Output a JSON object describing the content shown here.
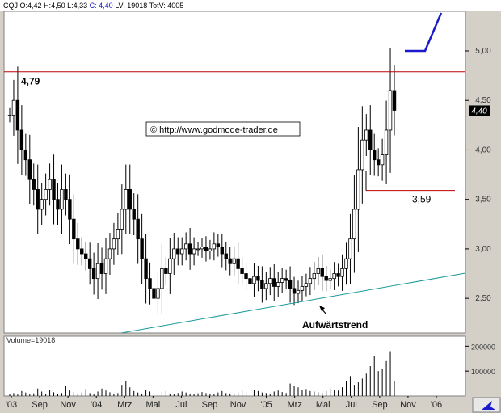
{
  "header": {
    "symbol": "CQJ",
    "open": "O:4,42",
    "high": "H:4,50",
    "low": "L:4,33",
    "close": "C: 4,40",
    "lv": "LV: 19018",
    "totv": "TotV: 4005"
  },
  "colors": {
    "background": "#ffffff",
    "frame": "#d4d0c8",
    "candles": "#000000",
    "resistance_line": "#c00000",
    "trend_line": "#1a9a9a",
    "projection": "#1a1acc",
    "volume": "#000000"
  },
  "icons": {
    "corner_button": "cursor-arrow-icon",
    "annotation_arrow": "arrow-icon"
  },
  "chart_data": {
    "type": "candlestick",
    "grid": false,
    "yaxis_position": "right",
    "ylim": [
      2.15,
      5.4
    ],
    "y_ticks": [
      "5,00",
      "4,50",
      "4,00",
      "3,50",
      "3,00",
      "2,50"
    ],
    "last_price_label": "4,40",
    "x_ticks": [
      "'03",
      "Sep",
      "Nov",
      "'04",
      "Mrz",
      "Mai",
      "Jul",
      "Sep",
      "Nov",
      "'05",
      "Mrz",
      "Mai",
      "Jul",
      "Sep",
      "Nov",
      "'06"
    ],
    "watermark": "© http://www.godmode-trader.de",
    "annotations": {
      "resistance_label": "4,79",
      "resistance_value": 4.79,
      "support_label": "3,59",
      "support_value": 3.59,
      "trend_label": "Aufwärtstrend"
    },
    "weekly_close": [
      4.35,
      4.5,
      4.2,
      4.0,
      3.9,
      3.7,
      3.6,
      3.4,
      3.5,
      3.6,
      3.7,
      3.5,
      3.4,
      3.6,
      3.5,
      3.3,
      3.1,
      3.0,
      2.95,
      2.9,
      2.8,
      2.7,
      2.85,
      2.75,
      2.9,
      3.0,
      3.1,
      3.2,
      3.4,
      3.6,
      3.4,
      3.3,
      3.1,
      2.9,
      2.7,
      2.6,
      2.5,
      2.6,
      2.8,
      2.75,
      2.9,
      3.0,
      2.95,
      3.0,
      3.05,
      2.95,
      3.0,
      3.0,
      3.02,
      2.98,
      3.0,
      3.05,
      3.02,
      2.95,
      2.9,
      2.85,
      2.9,
      2.8,
      2.75,
      2.7,
      2.65,
      2.72,
      2.68,
      2.6,
      2.65,
      2.7,
      2.62,
      2.66,
      2.7,
      2.68,
      2.6,
      2.55,
      2.58,
      2.62,
      2.65,
      2.7,
      2.75,
      2.8,
      2.72,
      2.68,
      2.7,
      2.75,
      2.72,
      2.8,
      2.9,
      3.1,
      3.4,
      3.8,
      4.1,
      4.2,
      4.0,
      3.9,
      3.85,
      3.95,
      4.2,
      4.6,
      4.4
    ],
    "volume_ylim": [
      0,
      240000
    ],
    "volume_ticks": [
      "200000",
      "100000"
    ],
    "volume_label": "Volume=19018",
    "weekly_volume": [
      8,
      12,
      6,
      20,
      14,
      9,
      11,
      30,
      18,
      10,
      25,
      15,
      8,
      12,
      40,
      22,
      16,
      10,
      14,
      28,
      12,
      9,
      18,
      30,
      22,
      15,
      10,
      12,
      45,
      60,
      35,
      20,
      14,
      10,
      25,
      18,
      12,
      9,
      15,
      20,
      10,
      8,
      12,
      18,
      14,
      10,
      9,
      11,
      16,
      12,
      10,
      8,
      14,
      20,
      12,
      10,
      9,
      15,
      22,
      18,
      30,
      25,
      20,
      14,
      12,
      10,
      18,
      22,
      16,
      12,
      50,
      40,
      35,
      25,
      28,
      20,
      18,
      15,
      12,
      20,
      30,
      25,
      22,
      35,
      60,
      80,
      45,
      55,
      70,
      90,
      120,
      160,
      100,
      110,
      140,
      180,
      60
    ]
  }
}
